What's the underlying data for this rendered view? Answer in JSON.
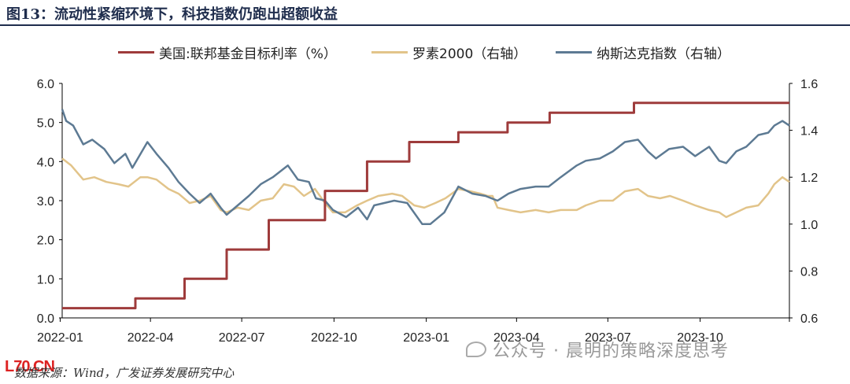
{
  "title": "图13：流动性紧缩环境下，科技指数仍跑出超额收益",
  "source_text": "数据来源：Wind，广发证券发展研究中心",
  "source_logo_text": "L70.CN",
  "watermark": "公众号 · 晨明的策略深度思考",
  "watermark_icon": "wechat-icon",
  "legend": [
    {
      "name": "美国:联邦基金目标利率（%）",
      "color": "#9e3b3b"
    },
    {
      "name": "罗素2000（右轴）",
      "color": "#e2c48a"
    },
    {
      "name": "纳斯达克指数（右轴）",
      "color": "#5d7a93"
    }
  ],
  "chart_data": {
    "type": "line",
    "x_ticks": [
      "2022-01",
      "2022-04",
      "2022-07",
      "2022-10",
      "2023-01",
      "2023-04",
      "2023-07",
      "2023-10"
    ],
    "x_range": [
      "2022-01-03",
      "2023-12-29"
    ],
    "y_left": {
      "range": [
        0.0,
        6.0
      ],
      "ticks": [
        "0.0",
        "1.0",
        "2.0",
        "3.0",
        "4.0",
        "5.0",
        "6.0"
      ]
    },
    "y_right": {
      "range": [
        0.6,
        1.6
      ],
      "ticks": [
        "0.6",
        "0.8",
        "1.0",
        "1.2",
        "1.4",
        "1.6"
      ]
    },
    "grid": false,
    "legend_position": "top",
    "series": [
      {
        "name": "美国:联邦基金目标利率（%）",
        "axis": "left",
        "color": "#9e3b3b",
        "step": true,
        "x": [
          "2022-01-03",
          "2022-03-17",
          "2022-05-05",
          "2022-06-16",
          "2022-07-28",
          "2022-09-22",
          "2022-11-03",
          "2022-12-15",
          "2023-02-02",
          "2023-03-23",
          "2023-05-04",
          "2023-07-27",
          "2023-12-29"
        ],
        "values": [
          0.25,
          0.5,
          1.0,
          1.75,
          2.5,
          3.25,
          4.0,
          4.5,
          4.75,
          5.0,
          5.25,
          5.5,
          5.5
        ]
      },
      {
        "name": "罗素2000（右轴）",
        "axis": "right",
        "color": "#e2c48a",
        "x": [
          "2022-01-03",
          "2022-01-12",
          "2022-01-24",
          "2022-02-04",
          "2022-02-16",
          "2022-02-28",
          "2022-03-10",
          "2022-03-22",
          "2022-03-29",
          "2022-04-07",
          "2022-04-19",
          "2022-04-29",
          "2022-05-10",
          "2022-05-20",
          "2022-05-31",
          "2022-06-10",
          "2022-06-16",
          "2022-06-27",
          "2022-07-08",
          "2022-07-20",
          "2022-08-01",
          "2022-08-12",
          "2022-08-22",
          "2022-09-01",
          "2022-09-12",
          "2022-09-22",
          "2022-09-30",
          "2022-10-12",
          "2022-10-24",
          "2022-11-03",
          "2022-11-14",
          "2022-11-28",
          "2022-12-08",
          "2022-12-20",
          "2022-12-30",
          "2023-01-10",
          "2023-01-20",
          "2023-02-02",
          "2023-02-14",
          "2023-02-24",
          "2023-03-03",
          "2023-03-08",
          "2023-03-13",
          "2023-03-24",
          "2023-04-05",
          "2023-04-20",
          "2023-05-03",
          "2023-05-15",
          "2023-05-31",
          "2023-06-09",
          "2023-06-23",
          "2023-07-06",
          "2023-07-18",
          "2023-07-31",
          "2023-08-10",
          "2023-08-22",
          "2023-09-01",
          "2023-09-14",
          "2023-09-26",
          "2023-10-10",
          "2023-10-20",
          "2023-10-27",
          "2023-11-06",
          "2023-11-16",
          "2023-11-28",
          "2023-12-08",
          "2023-12-14",
          "2023-12-22",
          "2023-12-29"
        ],
        "values": [
          1.28,
          1.25,
          1.19,
          1.2,
          1.18,
          1.17,
          1.16,
          1.2,
          1.2,
          1.19,
          1.15,
          1.13,
          1.09,
          1.1,
          1.12,
          1.06,
          1.05,
          1.07,
          1.06,
          1.1,
          1.11,
          1.17,
          1.16,
          1.12,
          1.15,
          1.09,
          1.05,
          1.05,
          1.08,
          1.1,
          1.12,
          1.13,
          1.12,
          1.08,
          1.07,
          1.09,
          1.11,
          1.15,
          1.14,
          1.13,
          1.12,
          1.12,
          1.07,
          1.06,
          1.05,
          1.06,
          1.05,
          1.06,
          1.06,
          1.08,
          1.1,
          1.1,
          1.14,
          1.15,
          1.12,
          1.11,
          1.12,
          1.1,
          1.08,
          1.06,
          1.05,
          1.03,
          1.05,
          1.07,
          1.08,
          1.13,
          1.17,
          1.2,
          1.18
        ]
      },
      {
        "name": "纳斯达克指数（右轴）",
        "axis": "right",
        "color": "#5d7a93",
        "x": [
          "2022-01-03",
          "2022-01-07",
          "2022-01-14",
          "2022-01-24",
          "2022-02-02",
          "2022-02-14",
          "2022-02-24",
          "2022-03-07",
          "2022-03-14",
          "2022-03-29",
          "2022-04-07",
          "2022-04-19",
          "2022-04-29",
          "2022-05-10",
          "2022-05-20",
          "2022-05-31",
          "2022-06-10",
          "2022-06-16",
          "2022-06-27",
          "2022-07-08",
          "2022-07-20",
          "2022-08-01",
          "2022-08-16",
          "2022-08-26",
          "2022-09-06",
          "2022-09-13",
          "2022-09-22",
          "2022-09-30",
          "2022-10-13",
          "2022-10-25",
          "2022-11-03",
          "2022-11-10",
          "2022-11-30",
          "2022-12-13",
          "2022-12-28",
          "2023-01-05",
          "2023-01-19",
          "2023-02-02",
          "2023-02-16",
          "2023-03-01",
          "2023-03-13",
          "2023-03-24",
          "2023-04-05",
          "2023-04-20",
          "2023-05-03",
          "2023-05-15",
          "2023-05-31",
          "2023-06-09",
          "2023-06-23",
          "2023-07-06",
          "2023-07-18",
          "2023-07-31",
          "2023-08-10",
          "2023-08-18",
          "2023-08-31",
          "2023-09-14",
          "2023-09-26",
          "2023-10-10",
          "2023-10-20",
          "2023-10-27",
          "2023-11-06",
          "2023-11-16",
          "2023-11-28",
          "2023-12-08",
          "2023-12-14",
          "2023-12-22",
          "2023-12-29"
        ],
        "values": [
          1.49,
          1.44,
          1.42,
          1.34,
          1.36,
          1.32,
          1.26,
          1.3,
          1.24,
          1.35,
          1.3,
          1.24,
          1.18,
          1.13,
          1.09,
          1.13,
          1.07,
          1.04,
          1.08,
          1.12,
          1.17,
          1.2,
          1.25,
          1.19,
          1.18,
          1.11,
          1.1,
          1.06,
          1.03,
          1.07,
          1.02,
          1.08,
          1.1,
          1.09,
          1.0,
          1.0,
          1.05,
          1.16,
          1.13,
          1.12,
          1.1,
          1.13,
          1.15,
          1.16,
          1.16,
          1.2,
          1.25,
          1.27,
          1.28,
          1.31,
          1.35,
          1.36,
          1.31,
          1.28,
          1.32,
          1.33,
          1.29,
          1.33,
          1.27,
          1.26,
          1.31,
          1.33,
          1.38,
          1.39,
          1.42,
          1.44,
          1.42
        ]
      }
    ]
  }
}
